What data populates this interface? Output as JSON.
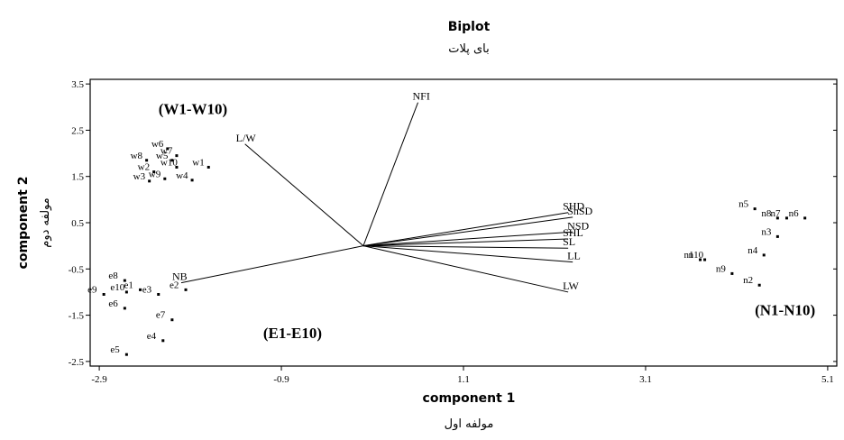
{
  "chart_data": {
    "type": "scatter",
    "title": "Biplot",
    "subtitle": "بای پلات",
    "xlabel": "component 1",
    "xlabel_secondary": "مولفه اول",
    "ylabel": "component 2",
    "ylabel_secondary": "مولفه دوم",
    "xlim": [
      -3.0,
      5.2
    ],
    "ylim": [
      -2.6,
      3.6
    ],
    "xticks": [
      "-2.9",
      "-0.9",
      "1.1",
      "3.1",
      "5.1"
    ],
    "yticks": [
      "3.5",
      "2.5",
      "1.5",
      "0.5",
      "-0.5",
      "-1.5",
      "-2.5"
    ],
    "grid": false,
    "group_labels": [
      {
        "text": "(W1-W10)",
        "x": -2.25,
        "y": 2.85
      },
      {
        "text": "(E1-E10)",
        "x": -1.1,
        "y": -2.0
      },
      {
        "text": "(N1-N10)",
        "x": 4.3,
        "y": -1.5
      }
    ],
    "vectors": [
      {
        "name": "L/W",
        "x": -1.3,
        "y": 2.2
      },
      {
        "name": "NFI",
        "x": 0.6,
        "y": 3.1
      },
      {
        "name": "NB",
        "x": -2.0,
        "y": -0.8
      },
      {
        "name": "SHD",
        "x": 2.25,
        "y": 0.72
      },
      {
        "name": "ShSD",
        "x": 2.3,
        "y": 0.62
      },
      {
        "name": "NSD",
        "x": 2.3,
        "y": 0.3
      },
      {
        "name": "SHL",
        "x": 2.25,
        "y": 0.15
      },
      {
        "name": "SL",
        "x": 2.25,
        "y": -0.05
      },
      {
        "name": "LL",
        "x": 2.3,
        "y": -0.35
      },
      {
        "name": "LW",
        "x": 2.25,
        "y": -1.0
      }
    ],
    "points": [
      {
        "label": "w6",
        "x": -2.15,
        "y": 2.1
      },
      {
        "label": "w7",
        "x": -2.05,
        "y": 1.95
      },
      {
        "label": "w5",
        "x": -2.1,
        "y": 1.85
      },
      {
        "label": "w8",
        "x": -2.38,
        "y": 1.85
      },
      {
        "label": "w10",
        "x": -2.05,
        "y": 1.7
      },
      {
        "label": "w1",
        "x": -1.7,
        "y": 1.7
      },
      {
        "label": "w2",
        "x": -2.3,
        "y": 1.6
      },
      {
        "label": "w3",
        "x": -2.35,
        "y": 1.4
      },
      {
        "label": "w9",
        "x": -2.18,
        "y": 1.45
      },
      {
        "label": "w4",
        "x": -1.88,
        "y": 1.42
      },
      {
        "label": "e8",
        "x": -2.62,
        "y": -0.75
      },
      {
        "label": "e10",
        "x": -2.6,
        "y": -1.0
      },
      {
        "label": "e1",
        "x": -2.45,
        "y": -0.95
      },
      {
        "label": "e3",
        "x": -2.25,
        "y": -1.05
      },
      {
        "label": "e2",
        "x": -1.95,
        "y": -0.95
      },
      {
        "label": "e9",
        "x": -2.85,
        "y": -1.05
      },
      {
        "label": "e6",
        "x": -2.62,
        "y": -1.35
      },
      {
        "label": "e7",
        "x": -2.1,
        "y": -1.6
      },
      {
        "label": "e4",
        "x": -2.2,
        "y": -2.05
      },
      {
        "label": "e5",
        "x": -2.6,
        "y": -2.35
      },
      {
        "label": "n5",
        "x": 4.3,
        "y": 0.8
      },
      {
        "label": "n8",
        "x": 4.55,
        "y": 0.6
      },
      {
        "label": "n7",
        "x": 4.65,
        "y": 0.6
      },
      {
        "label": "n6",
        "x": 4.85,
        "y": 0.6
      },
      {
        "label": "n3",
        "x": 4.55,
        "y": 0.2
      },
      {
        "label": "n4",
        "x": 4.4,
        "y": -0.2
      },
      {
        "label": "n10",
        "x": 3.75,
        "y": -0.3
      },
      {
        "label": "n1",
        "x": 3.7,
        "y": -0.3
      },
      {
        "label": "n9",
        "x": 4.05,
        "y": -0.6
      },
      {
        "label": "n2",
        "x": 4.35,
        "y": -0.85
      }
    ]
  }
}
